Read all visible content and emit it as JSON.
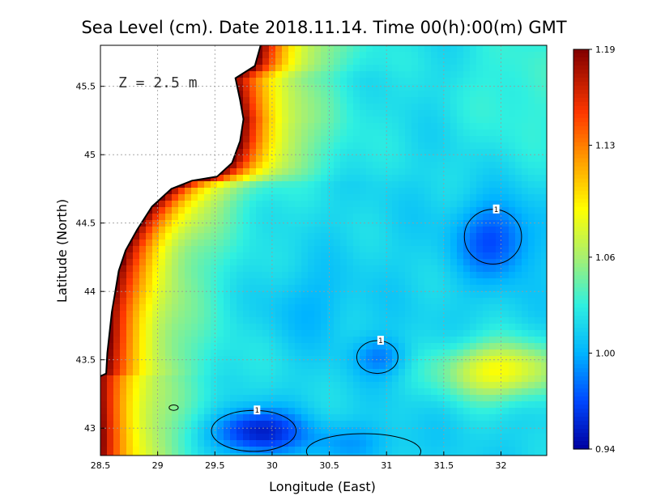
{
  "chart_data": {
    "type": "heatmap",
    "title": "Sea Level (cm). Date 2018.11.14. Time 00(h):00(m) GMT",
    "xlabel": "Longitude (East)",
    "ylabel": "Latitude (North)",
    "annotation": "Z = 2.5 m",
    "xlim": [
      28.5,
      32.4
    ],
    "ylim": [
      42.8,
      45.8
    ],
    "x_ticks": [
      {
        "v": 28.5,
        "label": "28.5"
      },
      {
        "v": 29,
        "label": "29"
      },
      {
        "v": 29.5,
        "label": "29.5"
      },
      {
        "v": 30,
        "label": "30"
      },
      {
        "v": 30.5,
        "label": "30.5"
      },
      {
        "v": 31,
        "label": "31"
      },
      {
        "v": 31.5,
        "label": "31.5"
      },
      {
        "v": 32,
        "label": "32"
      }
    ],
    "y_ticks": [
      {
        "v": 43,
        "label": "43"
      },
      {
        "v": 43.5,
        "label": "43.5"
      },
      {
        "v": 44,
        "label": "44"
      },
      {
        "v": 44.5,
        "label": "44.5"
      },
      {
        "v": 45,
        "label": "45"
      },
      {
        "v": 45.5,
        "label": "45.5"
      }
    ],
    "grid": true,
    "colorbar": {
      "min": 0.94,
      "max": 1.19,
      "tick_labels": [
        {
          "v": 1.19,
          "label": "1.19"
        },
        {
          "v": 1.13,
          "label": "1.13"
        },
        {
          "v": 1.06,
          "label": "1.06"
        },
        {
          "v": 1.0,
          "label": "1.00"
        },
        {
          "v": 0.94,
          "label": "0.94"
        }
      ],
      "stops": [
        {
          "v": 0.94,
          "color": "#0000a0"
        },
        {
          "v": 0.97,
          "color": "#0048ff"
        },
        {
          "v": 1.0,
          "color": "#00b4ff"
        },
        {
          "v": 1.03,
          "color": "#2ff0e0"
        },
        {
          "v": 1.06,
          "color": "#a8f070"
        },
        {
          "v": 1.09,
          "color": "#ffff00"
        },
        {
          "v": 1.12,
          "color": "#ffa000"
        },
        {
          "v": 1.15,
          "color": "#ff3800"
        },
        {
          "v": 1.19,
          "color": "#800000"
        }
      ]
    },
    "field_model": {
      "background": 1.015,
      "coast_peak": 1.19,
      "coast_width_deg": 0.85,
      "features": [
        {
          "lon": 29.85,
          "lat": 42.97,
          "amp": -0.07,
          "sx": 0.28,
          "sy": 0.12
        },
        {
          "lon": 31.95,
          "lat": 44.38,
          "amp": -0.045,
          "sx": 0.24,
          "sy": 0.2
        },
        {
          "lon": 30.95,
          "lat": 43.52,
          "amp": -0.03,
          "sx": 0.17,
          "sy": 0.1
        },
        {
          "lon": 32.0,
          "lat": 43.42,
          "amp": 0.075,
          "sx": 0.38,
          "sy": 0.15
        },
        {
          "lon": 30.7,
          "lat": 42.9,
          "amp": -0.02,
          "sx": 0.3,
          "sy": 0.1
        },
        {
          "lon": 32.2,
          "lat": 45.5,
          "amp": 0.02,
          "sx": 0.4,
          "sy": 0.4
        },
        {
          "lon": 30.3,
          "lat": 43.9,
          "amp": -0.015,
          "sx": 0.3,
          "sy": 0.2
        }
      ]
    },
    "coastline": [
      [
        29.9,
        45.8
      ],
      [
        29.85,
        45.65
      ],
      [
        29.68,
        45.56
      ],
      [
        29.72,
        45.4
      ],
      [
        29.75,
        45.26
      ],
      [
        29.72,
        45.1
      ],
      [
        29.65,
        44.94
      ],
      [
        29.52,
        44.84
      ],
      [
        29.3,
        44.81
      ],
      [
        29.12,
        44.75
      ],
      [
        28.95,
        44.62
      ],
      [
        28.82,
        44.45
      ],
      [
        28.72,
        44.3
      ],
      [
        28.66,
        44.15
      ],
      [
        28.63,
        44.0
      ],
      [
        28.6,
        43.85
      ],
      [
        28.58,
        43.7
      ],
      [
        28.56,
        43.55
      ],
      [
        28.55,
        43.4
      ],
      [
        28.5,
        43.38
      ]
    ],
    "contours": [
      {
        "label": "1",
        "lon": 29.84,
        "lat": 42.98,
        "rx": 0.37,
        "ry": 0.15
      },
      {
        "label": "1",
        "lon": 31.93,
        "lat": 44.4,
        "rx": 0.25,
        "ry": 0.2
      },
      {
        "label": "1",
        "lon": 30.92,
        "lat": 43.52,
        "rx": 0.18,
        "ry": 0.12
      },
      {
        "label": "",
        "lon": 29.14,
        "lat": 43.15,
        "rx": 0.04,
        "ry": 0.02
      },
      {
        "label": "",
        "lon": 30.8,
        "lat": 42.83,
        "rx": 0.5,
        "ry": 0.13
      }
    ]
  }
}
